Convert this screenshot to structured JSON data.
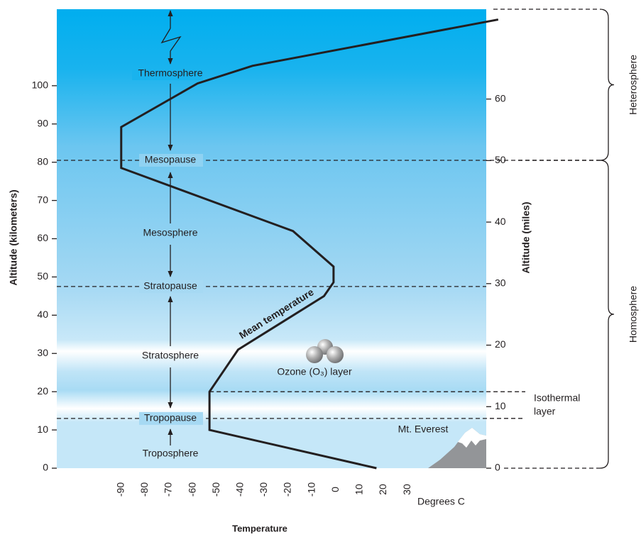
{
  "chart_data": {
    "type": "line",
    "xlabel": "Temperature",
    "xunit_label": "Degrees C",
    "ylabel": "Altitude (kilometers)",
    "y2label": "Altitude (miles)",
    "xlim": [
      -117,
      63
    ],
    "xticks": [
      -90,
      -80,
      -70,
      -60,
      -50,
      -40,
      -30,
      -20,
      -10,
      0,
      10,
      20,
      30
    ],
    "ylim": [
      0,
      120
    ],
    "yticks": [
      0,
      10,
      20,
      30,
      40,
      50,
      60,
      70,
      80,
      90,
      100
    ],
    "y2lim": [
      0,
      74.6
    ],
    "y2ticks": [
      0,
      10,
      20,
      30,
      40,
      50,
      60
    ],
    "series": [
      {
        "name": "Mean temperature",
        "color": "#231f20",
        "x": [
          17,
          -53,
          -53,
          -41,
          -5,
          -1,
          -1,
          -18,
          -90,
          -90,
          -58,
          -35,
          68
        ],
        "values": [
          0,
          10,
          20,
          31,
          45,
          48.6,
          52.7,
          62,
          78.5,
          89.2,
          100.6,
          105.2,
          117.3
        ]
      }
    ],
    "layers": [
      "Thermosphere",
      "Mesosphere",
      "Stratosphere",
      "Troposphere"
    ],
    "boundaries": [
      {
        "label": "Mesopause",
        "value": 80.5
      },
      {
        "label": "Stratopause",
        "value": 47.5
      },
      {
        "label": "Tropopause",
        "value": 13
      }
    ],
    "isothermal_layer": {
      "label": [
        "Isothermal",
        "layer"
      ],
      "range": [
        13,
        20
      ]
    },
    "regions": [
      {
        "label": "Heterosphere",
        "range": [
          80.5,
          120
        ]
      },
      {
        "label": "Homosphere",
        "range": [
          0,
          80.5
        ]
      }
    ],
    "annotations": {
      "ozone": "Ozone (O₃) layer",
      "everest": "Mt. Everest"
    }
  }
}
